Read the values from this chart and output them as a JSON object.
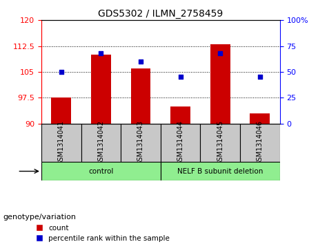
{
  "title": "GDS5302 / ILMN_2758459",
  "samples": [
    "GSM1314041",
    "GSM1314042",
    "GSM1314043",
    "GSM1314044",
    "GSM1314045",
    "GSM1314046"
  ],
  "counts": [
    97.5,
    110.0,
    106.0,
    95.0,
    113.0,
    93.0
  ],
  "percentiles": [
    50,
    68,
    60,
    45,
    68,
    45
  ],
  "ylim_left": [
    90,
    120
  ],
  "ylim_right": [
    0,
    100
  ],
  "yticks_left": [
    90,
    97.5,
    105,
    112.5,
    120
  ],
  "yticks_right": [
    0,
    25,
    50,
    75,
    100
  ],
  "ytick_labels_left": [
    "90",
    "97.5",
    "105",
    "112.5",
    "120"
  ],
  "ytick_labels_right": [
    "0",
    "25",
    "50",
    "75",
    "100%"
  ],
  "groups": [
    {
      "label": "control",
      "indices": [
        0,
        1,
        2
      ],
      "color": "#90EE90"
    },
    {
      "label": "NELF B subunit deletion",
      "indices": [
        3,
        4,
        5
      ],
      "color": "#90EE90"
    }
  ],
  "bar_color": "#CC0000",
  "dot_color": "#0000CC",
  "bar_width": 0.5,
  "genotype_label": "genotype/variation",
  "legend_count_label": "count",
  "legend_pct_label": "percentile rank within the sample",
  "sample_box_color": "#C8C8C8",
  "group_box_color": "#90EE90"
}
